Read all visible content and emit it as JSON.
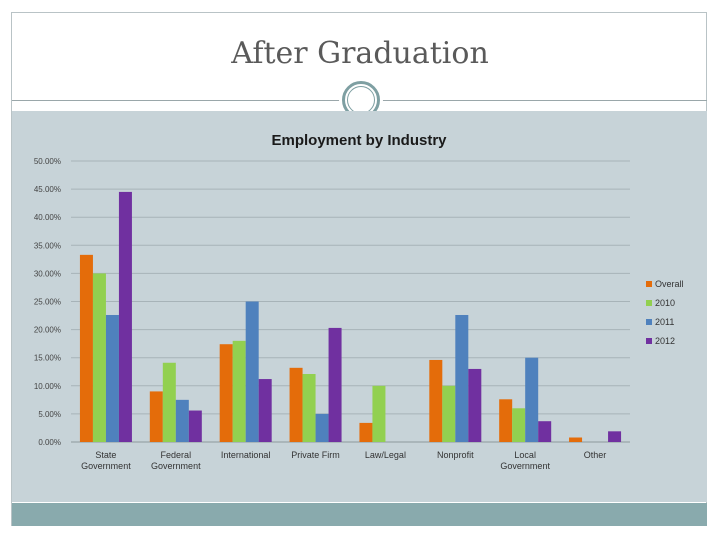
{
  "slide": {
    "title": "After Graduation"
  },
  "chart_data": {
    "type": "bar",
    "title": "Employment by Industry",
    "xlabel": "",
    "ylabel": "",
    "ylim": [
      0,
      50
    ],
    "yticks": [
      "0.00%",
      "5.00%",
      "10.00%",
      "15.00%",
      "20.00%",
      "25.00%",
      "30.00%",
      "35.00%",
      "40.00%",
      "45.00%",
      "50.00%"
    ],
    "grid": true,
    "legend_position": "right",
    "categories": [
      [
        "State",
        "Government"
      ],
      [
        "Federal",
        "Government"
      ],
      [
        "International"
      ],
      [
        "Private Firm"
      ],
      [
        "Law/Legal"
      ],
      [
        "Nonprofit"
      ],
      [
        "Local",
        "Government"
      ],
      [
        "Other"
      ]
    ],
    "series": [
      {
        "name": "Overall",
        "color": "#e46c0a",
        "values": [
          33.3,
          9.0,
          17.4,
          13.2,
          3.4,
          14.6,
          7.6,
          0.8
        ]
      },
      {
        "name": "2010",
        "color": "#92d050",
        "values": [
          30.0,
          14.1,
          18.0,
          12.1,
          10.0,
          10.0,
          6.0,
          0
        ]
      },
      {
        "name": "2011",
        "color": "#4f81bd",
        "values": [
          22.6,
          7.5,
          25.0,
          5.0,
          0,
          22.6,
          15.0,
          0
        ]
      },
      {
        "name": "2012",
        "color": "#7030a0",
        "values": [
          44.5,
          5.6,
          11.2,
          20.3,
          0,
          13.0,
          3.7,
          1.9
        ]
      }
    ]
  }
}
